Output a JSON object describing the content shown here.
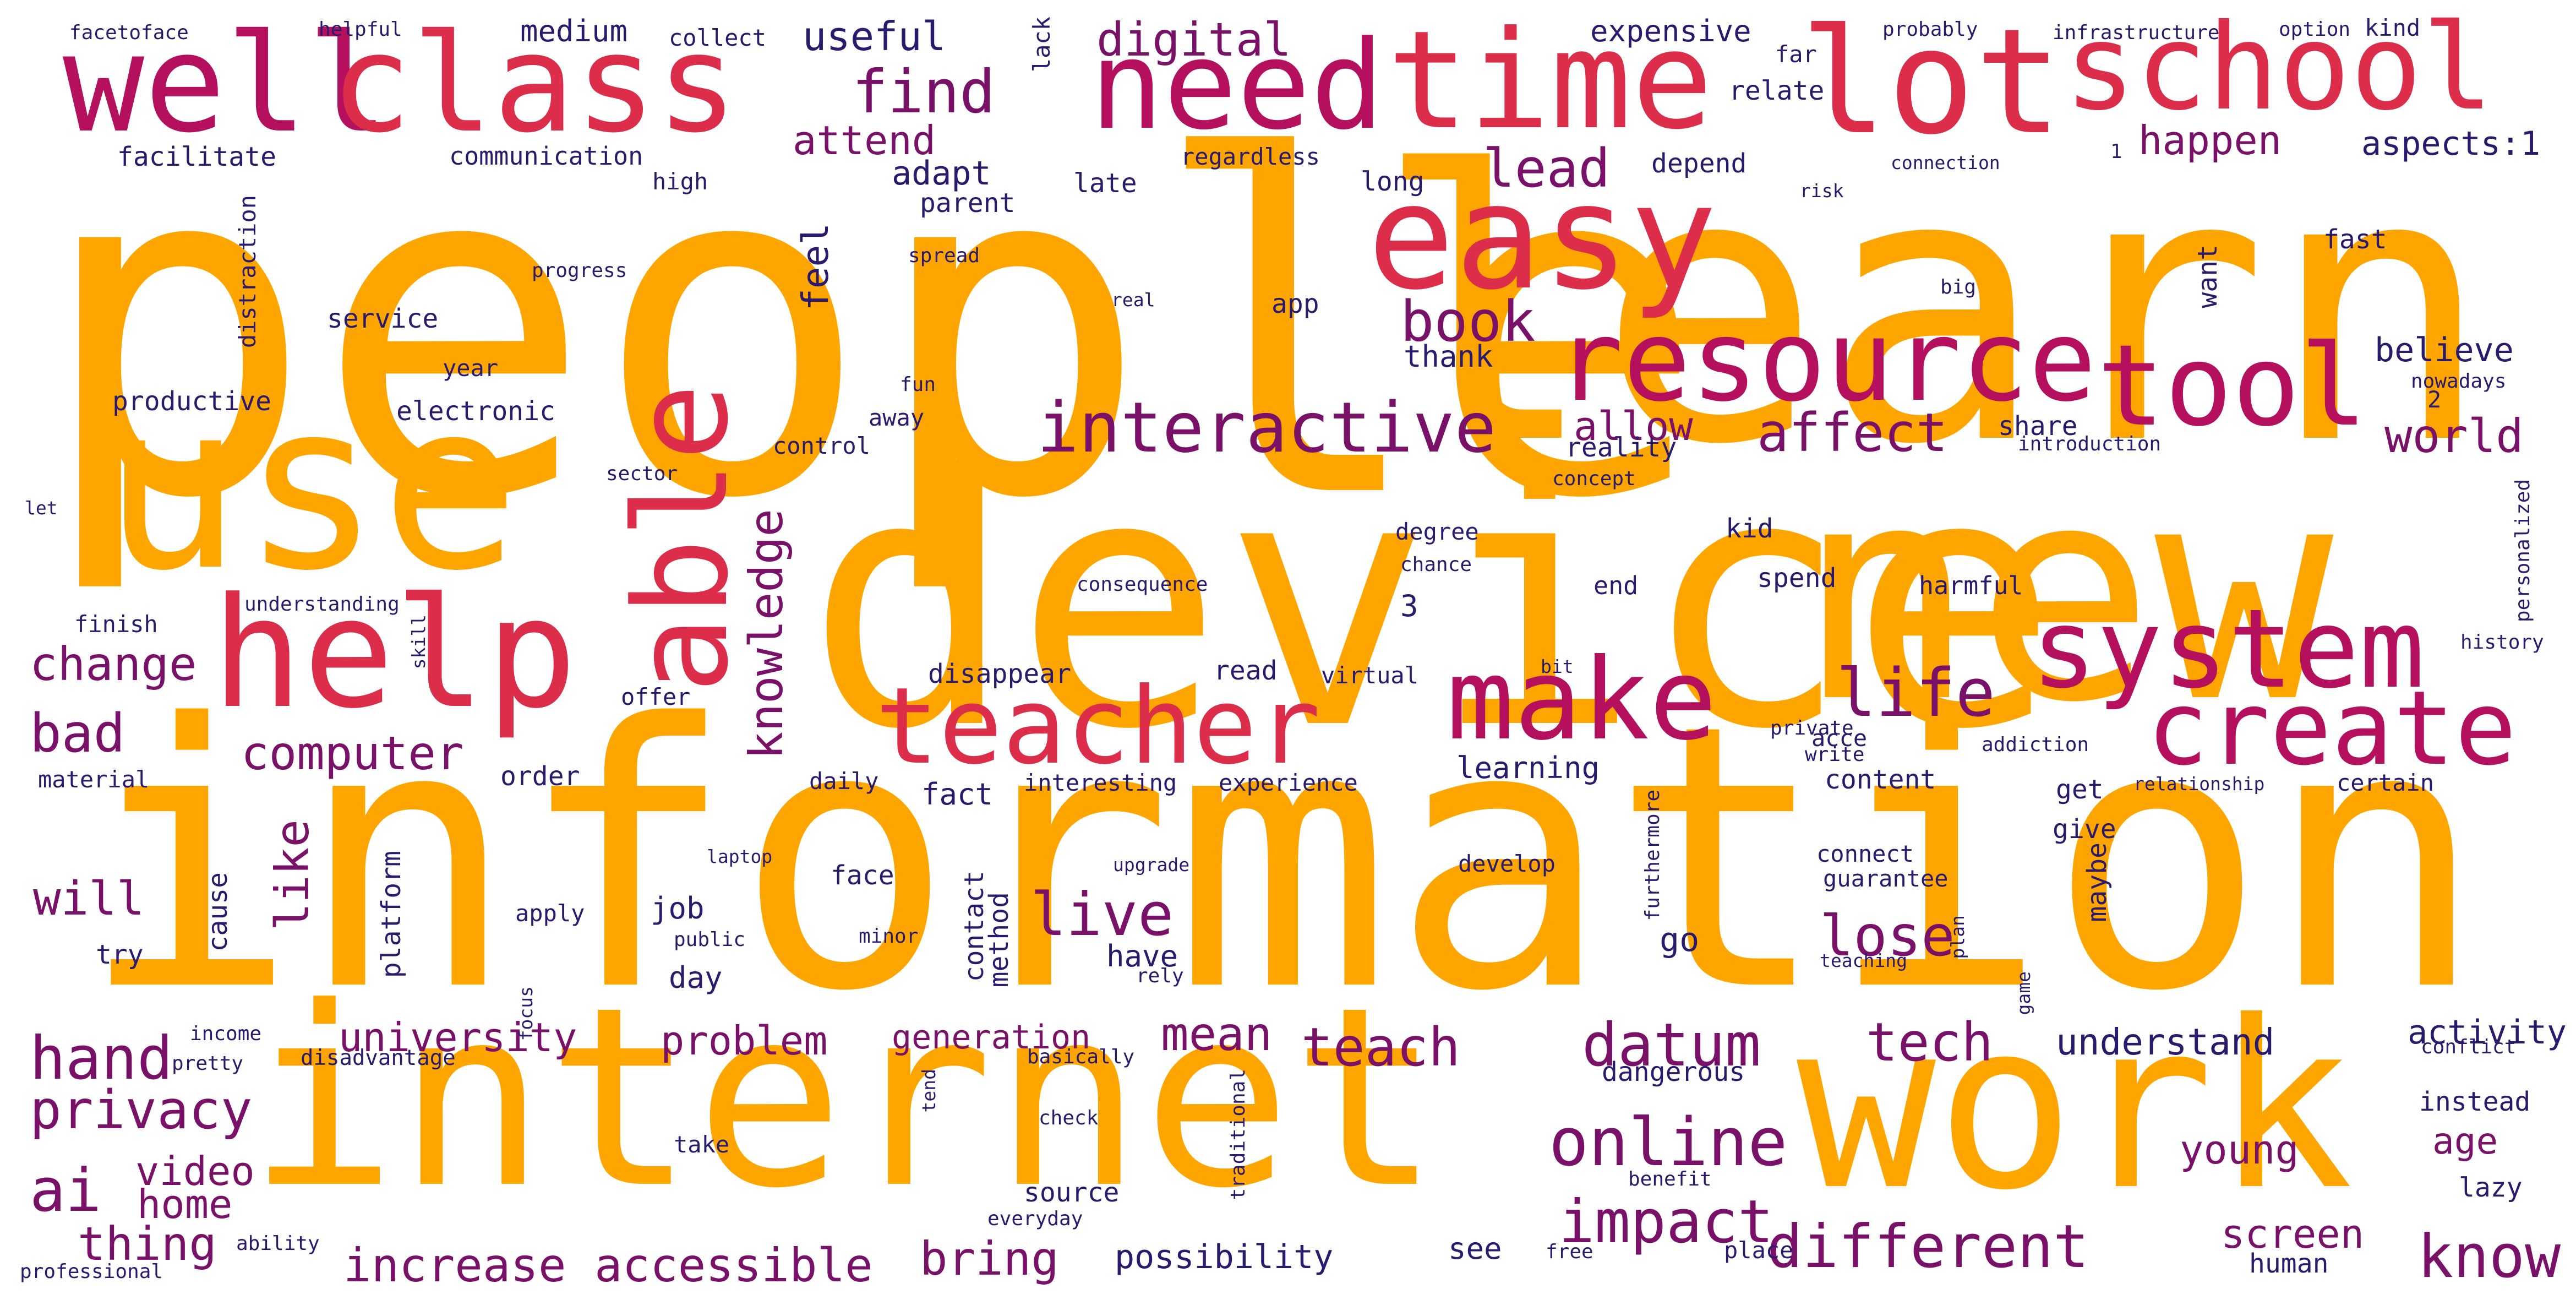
{
  "palette": {
    "orange": "#FFA500",
    "crimson": "#DC2D4A",
    "magenta": "#B5105E",
    "purple": "#7A1168",
    "navy": "#2A1A6E"
  },
  "words": [
    {
      "text": "people",
      "color": "orange"
    },
    {
      "text": "learn",
      "color": "orange"
    },
    {
      "text": "device",
      "color": "orange"
    },
    {
      "text": "new",
      "color": "orange"
    },
    {
      "text": "information",
      "color": "orange"
    },
    {
      "text": "use",
      "color": "orange"
    },
    {
      "text": "internet",
      "color": "orange"
    },
    {
      "text": "work",
      "color": "orange"
    },
    {
      "text": "well",
      "color": "magenta"
    },
    {
      "text": "class",
      "color": "crimson"
    },
    {
      "text": "need",
      "color": "magenta"
    },
    {
      "text": "time",
      "color": "crimson"
    },
    {
      "text": "lot",
      "color": "crimson"
    },
    {
      "text": "school",
      "color": "crimson"
    },
    {
      "text": "easy",
      "color": "crimson"
    },
    {
      "text": "resource",
      "color": "magenta"
    },
    {
      "text": "tool",
      "color": "magenta"
    },
    {
      "text": "help",
      "color": "crimson"
    },
    {
      "text": "able",
      "color": "crimson"
    },
    {
      "text": "system",
      "color": "magenta"
    },
    {
      "text": "teacher",
      "color": "crimson"
    },
    {
      "text": "make",
      "color": "magenta"
    },
    {
      "text": "create",
      "color": "magenta"
    },
    {
      "text": "find",
      "color": "purple"
    },
    {
      "text": "interactive",
      "color": "purple"
    },
    {
      "text": "book",
      "color": "purple"
    },
    {
      "text": "lead",
      "color": "purple"
    },
    {
      "text": "life",
      "color": "purple"
    },
    {
      "text": "computer",
      "color": "purple"
    },
    {
      "text": "knowledge",
      "color": "purple"
    },
    {
      "text": "change",
      "color": "purple"
    },
    {
      "text": "bad",
      "color": "purple"
    },
    {
      "text": "online",
      "color": "purple"
    },
    {
      "text": "datum",
      "color": "purple"
    },
    {
      "text": "live",
      "color": "purple"
    },
    {
      "text": "impact",
      "color": "purple"
    },
    {
      "text": "different",
      "color": "purple"
    },
    {
      "text": "hand",
      "color": "purple"
    },
    {
      "text": "privacy",
      "color": "purple"
    },
    {
      "text": "ai",
      "color": "purple"
    },
    {
      "text": "lose",
      "color": "purple"
    },
    {
      "text": "affect",
      "color": "purple"
    },
    {
      "text": "world",
      "color": "purple"
    },
    {
      "text": "teach",
      "color": "purple"
    },
    {
      "text": "tech",
      "color": "purple"
    },
    {
      "text": "know",
      "color": "purple"
    },
    {
      "text": "digital",
      "color": "purple"
    },
    {
      "text": "useful",
      "color": "navy"
    },
    {
      "text": "attend",
      "color": "purple"
    },
    {
      "text": "happen",
      "color": "purple"
    },
    {
      "text": "aspects:1",
      "color": "navy"
    },
    {
      "text": "adapt",
      "color": "navy"
    },
    {
      "text": "allow",
      "color": "purple"
    },
    {
      "text": "believe",
      "color": "navy"
    },
    {
      "text": "will",
      "color": "purple"
    },
    {
      "text": "like",
      "color": "purple"
    },
    {
      "text": "university",
      "color": "purple"
    },
    {
      "text": "increase",
      "color": "purple"
    },
    {
      "text": "accessible",
      "color": "purple"
    },
    {
      "text": "bring",
      "color": "purple"
    },
    {
      "text": "problem",
      "color": "purple"
    },
    {
      "text": "generation",
      "color": "purple"
    },
    {
      "text": "mean",
      "color": "purple"
    },
    {
      "text": "video",
      "color": "purple"
    },
    {
      "text": "home",
      "color": "purple"
    },
    {
      "text": "thing",
      "color": "purple"
    },
    {
      "text": "understand",
      "color": "navy"
    },
    {
      "text": "young",
      "color": "purple"
    },
    {
      "text": "screen",
      "color": "purple"
    },
    {
      "text": "possibility",
      "color": "navy"
    },
    {
      "text": "feel",
      "color": "navy"
    },
    {
      "text": "age",
      "color": "purple"
    },
    {
      "text": "activity",
      "color": "navy"
    },
    {
      "text": "medium",
      "color": "navy"
    },
    {
      "text": "expensive",
      "color": "navy"
    },
    {
      "text": "facilitate",
      "color": "navy"
    },
    {
      "text": "communication",
      "color": "navy"
    },
    {
      "text": "relate",
      "color": "navy"
    },
    {
      "text": "depend",
      "color": "navy"
    },
    {
      "text": "late",
      "color": "navy"
    },
    {
      "text": "long",
      "color": "navy"
    },
    {
      "text": "high",
      "color": "navy"
    },
    {
      "text": "parent",
      "color": "navy"
    },
    {
      "text": "regardless",
      "color": "navy"
    },
    {
      "text": "service",
      "color": "navy"
    },
    {
      "text": "year",
      "color": "navy"
    },
    {
      "text": "productive",
      "color": "navy"
    },
    {
      "text": "electronic",
      "color": "navy"
    },
    {
      "text": "app",
      "color": "navy"
    },
    {
      "text": "thank",
      "color": "navy"
    },
    {
      "text": "fast",
      "color": "navy"
    },
    {
      "text": "want",
      "color": "navy"
    },
    {
      "text": "2",
      "color": "navy"
    },
    {
      "text": "share",
      "color": "navy"
    },
    {
      "text": "reality",
      "color": "navy"
    },
    {
      "text": "kid",
      "color": "navy"
    },
    {
      "text": "spend",
      "color": "navy"
    },
    {
      "text": "end",
      "color": "navy"
    },
    {
      "text": "harmful",
      "color": "navy"
    },
    {
      "text": "3",
      "color": "navy"
    },
    {
      "text": "degree",
      "color": "navy"
    },
    {
      "text": "finish",
      "color": "navy"
    },
    {
      "text": "understanding",
      "color": "navy"
    },
    {
      "text": "consequence",
      "color": "navy"
    },
    {
      "text": "disappear",
      "color": "navy"
    },
    {
      "text": "read",
      "color": "navy"
    },
    {
      "text": "virtual",
      "color": "navy"
    },
    {
      "text": "offer",
      "color": "navy"
    },
    {
      "text": "history",
      "color": "navy"
    },
    {
      "text": "material",
      "color": "navy"
    },
    {
      "text": "order",
      "color": "navy"
    },
    {
      "text": "daily",
      "color": "navy"
    },
    {
      "text": "fact",
      "color": "navy"
    },
    {
      "text": "interesting",
      "color": "navy"
    },
    {
      "text": "experience",
      "color": "navy"
    },
    {
      "text": "learning",
      "color": "navy"
    },
    {
      "text": "content",
      "color": "navy"
    },
    {
      "text": "acce",
      "color": "navy"
    },
    {
      "text": "get",
      "color": "navy"
    },
    {
      "text": "give",
      "color": "navy"
    },
    {
      "text": "certain",
      "color": "navy"
    },
    {
      "text": "private",
      "color": "navy"
    },
    {
      "text": "write",
      "color": "navy"
    },
    {
      "text": "addiction",
      "color": "navy"
    },
    {
      "text": "relationship",
      "color": "navy"
    },
    {
      "text": "cause",
      "color": "navy"
    },
    {
      "text": "platform",
      "color": "navy"
    },
    {
      "text": "job",
      "color": "navy"
    },
    {
      "text": "contact",
      "color": "navy"
    },
    {
      "text": "method",
      "color": "navy"
    },
    {
      "text": "face",
      "color": "navy"
    },
    {
      "text": "develop",
      "color": "navy"
    },
    {
      "text": "connect",
      "color": "navy"
    },
    {
      "text": "guarantee",
      "color": "navy"
    },
    {
      "text": "go",
      "color": "navy"
    },
    {
      "text": "maybe",
      "color": "navy"
    },
    {
      "text": "try",
      "color": "navy"
    },
    {
      "text": "apply",
      "color": "navy"
    },
    {
      "text": "public",
      "color": "navy"
    },
    {
      "text": "minor",
      "color": "navy"
    },
    {
      "text": "rely",
      "color": "navy"
    },
    {
      "text": "have",
      "color": "navy"
    },
    {
      "text": "day",
      "color": "navy"
    },
    {
      "text": "source",
      "color": "navy"
    },
    {
      "text": "everyday",
      "color": "navy"
    },
    {
      "text": "see",
      "color": "navy"
    },
    {
      "text": "free",
      "color": "navy"
    },
    {
      "text": "place",
      "color": "navy"
    },
    {
      "text": "human",
      "color": "navy"
    },
    {
      "text": "benefit",
      "color": "navy"
    },
    {
      "text": "take",
      "color": "navy"
    },
    {
      "text": "check",
      "color": "navy"
    },
    {
      "text": "dangerous",
      "color": "navy"
    },
    {
      "text": "instead",
      "color": "navy"
    },
    {
      "text": "lazy",
      "color": "navy"
    },
    {
      "text": "conflict",
      "color": "navy"
    },
    {
      "text": "helpful",
      "color": "navy"
    },
    {
      "text": "facetoface",
      "color": "navy"
    },
    {
      "text": "collect",
      "color": "navy"
    },
    {
      "text": "lack",
      "color": "navy"
    },
    {
      "text": "far",
      "color": "navy"
    },
    {
      "text": "probably",
      "color": "navy"
    },
    {
      "text": "infrastructure",
      "color": "navy"
    },
    {
      "text": "option",
      "color": "navy"
    },
    {
      "text": "kind",
      "color": "navy"
    },
    {
      "text": "connection",
      "color": "navy"
    },
    {
      "text": "1",
      "color": "navy"
    },
    {
      "text": "risk",
      "color": "navy"
    },
    {
      "text": "progress",
      "color": "navy"
    },
    {
      "text": "spread",
      "color": "navy"
    },
    {
      "text": "real",
      "color": "navy"
    },
    {
      "text": "big",
      "color": "navy"
    },
    {
      "text": "distraction",
      "color": "navy"
    },
    {
      "text": "fun",
      "color": "navy"
    },
    {
      "text": "away",
      "color": "navy"
    },
    {
      "text": "control",
      "color": "navy"
    },
    {
      "text": "introduction",
      "color": "navy"
    },
    {
      "text": "nowadays",
      "color": "navy"
    },
    {
      "text": "sector",
      "color": "navy"
    },
    {
      "text": "concept",
      "color": "navy"
    },
    {
      "text": "let",
      "color": "navy"
    },
    {
      "text": "chance",
      "color": "navy"
    },
    {
      "text": "skill",
      "color": "navy"
    },
    {
      "text": "bit",
      "color": "navy"
    },
    {
      "text": "personalized",
      "color": "navy"
    },
    {
      "text": "laptop",
      "color": "navy"
    },
    {
      "text": "upgrade",
      "color": "navy"
    },
    {
      "text": "furthermore",
      "color": "navy"
    },
    {
      "text": "focus",
      "color": "navy"
    },
    {
      "text": "plan",
      "color": "navy"
    },
    {
      "text": "teaching",
      "color": "navy"
    },
    {
      "text": "game",
      "color": "navy"
    },
    {
      "text": "income",
      "color": "navy"
    },
    {
      "text": "pretty",
      "color": "navy"
    },
    {
      "text": "disadvantage",
      "color": "navy"
    },
    {
      "text": "basically",
      "color": "navy"
    },
    {
      "text": "tend",
      "color": "navy"
    },
    {
      "text": "traditional",
      "color": "navy"
    },
    {
      "text": "ability",
      "color": "navy"
    },
    {
      "text": "professional",
      "color": "navy"
    }
  ]
}
